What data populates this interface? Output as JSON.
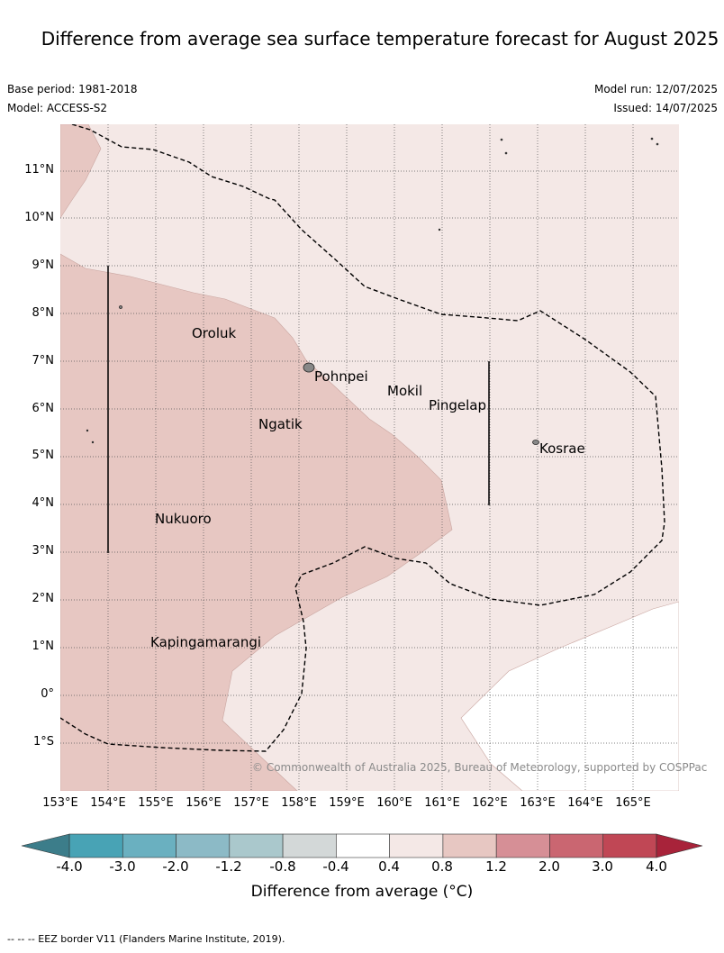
{
  "title": "Difference from average sea surface temperature forecast for August 2025",
  "meta": {
    "base_period": "Base period: 1981-2018",
    "model": "Model: ACCESS-S2",
    "model_run": "Model run: 12/07/2025",
    "issued": "Issued: 14/07/2025"
  },
  "map": {
    "lon_range": [
      153,
      165.98
    ],
    "lat_range": [
      -2.0,
      11.95
    ],
    "lat_ticks": [
      "11°N",
      "10°N",
      "9°N",
      "8°N",
      "7°N",
      "6°N",
      "5°N",
      "4°N",
      "3°N",
      "2°N",
      "1°N",
      "0°",
      "1°S"
    ],
    "lon_ticks": [
      "153°E",
      "154°E",
      "155°E",
      "156°E",
      "157°E",
      "158°E",
      "159°E",
      "160°E",
      "161°E",
      "162°E",
      "163°E",
      "164°E",
      "165°E"
    ],
    "places": [
      {
        "name": "Oroluk",
        "lon": 155.75,
        "lat": 7.65
      },
      {
        "name": "Pohnpei",
        "lon": 158.2,
        "lat": 6.9
      },
      {
        "name": "Mokil",
        "lon": 159.8,
        "lat": 6.7
      },
      {
        "name": "Pingelap",
        "lon": 160.7,
        "lat": 6.25
      },
      {
        "name": "Ngatik",
        "lon": 157.1,
        "lat": 5.8
      },
      {
        "name": "Kosrae",
        "lon": 162.98,
        "lat": 5.3
      },
      {
        "name": "Nukuoro",
        "lon": 154.95,
        "lat": 3.85
      },
      {
        "name": "Kapingamarangi",
        "lon": 154.85,
        "lat": 1.1
      }
    ],
    "copyright": "© Commonwealth of Australia 2025, Bureau of Meteorology, supported by COSPPac"
  },
  "colorbar": {
    "ticks": [
      "-4.0",
      "-3.0",
      "-2.0",
      "-1.2",
      "-0.8",
      "-0.4",
      "0.4",
      "0.8",
      "1.2",
      "2.0",
      "3.0",
      "4.0"
    ],
    "colors": [
      "#48a3b5",
      "#6ab0c0",
      "#8cbac6",
      "#aac8cc",
      "#d3d8d8",
      "#ffffff",
      "#f4e8e6",
      "#e7c7c2",
      "#d68f96",
      "#ca6671",
      "#c04755"
    ],
    "under_color": "#3c7d8a",
    "over_color": "#a8233a",
    "label": "Difference from average (°C)"
  },
  "footnote": "--  --  -- EEZ border V11 (Flanders Marine Institute, 2019)."
}
